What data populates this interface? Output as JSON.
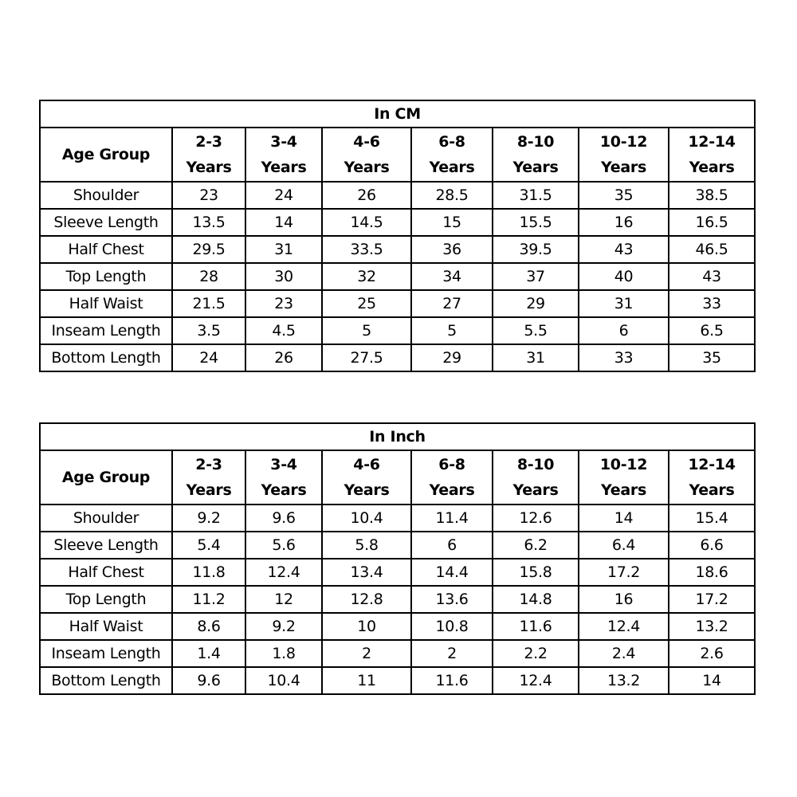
{
  "tables": [
    {
      "title": "In CM",
      "corner": "Age Group",
      "columns": [
        [
          "2-3",
          "Years"
        ],
        [
          "3-4",
          "Years"
        ],
        [
          "4-6",
          "Years"
        ],
        [
          "6-8",
          "Years"
        ],
        [
          "8-10",
          "Years"
        ],
        [
          "10-12",
          "Years"
        ],
        [
          "12-14",
          "Years"
        ]
      ],
      "rows": [
        {
          "label": "Shoulder",
          "values": [
            "23",
            "24",
            "26",
            "28.5",
            "31.5",
            "35",
            "38.5"
          ]
        },
        {
          "label": "Sleeve Length",
          "values": [
            "13.5",
            "14",
            "14.5",
            "15",
            "15.5",
            "16",
            "16.5"
          ]
        },
        {
          "label": "Half Chest",
          "values": [
            "29.5",
            "31",
            "33.5",
            "36",
            "39.5",
            "43",
            "46.5"
          ]
        },
        {
          "label": "Top Length",
          "values": [
            "28",
            "30",
            "32",
            "34",
            "37",
            "40",
            "43"
          ]
        },
        {
          "label": "Half Waist",
          "values": [
            "21.5",
            "23",
            "25",
            "27",
            "29",
            "31",
            "33"
          ]
        },
        {
          "label": "Inseam Length",
          "values": [
            "3.5",
            "4.5",
            "5",
            "5",
            "5.5",
            "6",
            "6.5"
          ]
        },
        {
          "label": "Bottom Length",
          "values": [
            "24",
            "26",
            "27.5",
            "29",
            "31",
            "33",
            "35"
          ]
        }
      ]
    },
    {
      "title": "In Inch",
      "corner": "Age Group",
      "columns": [
        [
          "2-3",
          "Years"
        ],
        [
          "3-4",
          "Years"
        ],
        [
          "4-6",
          "Years"
        ],
        [
          "6-8",
          "Years"
        ],
        [
          "8-10",
          "Years"
        ],
        [
          "10-12",
          "Years"
        ],
        [
          "12-14",
          "Years"
        ]
      ],
      "rows": [
        {
          "label": "Shoulder",
          "values": [
            "9.2",
            "9.6",
            "10.4",
            "11.4",
            "12.6",
            "14",
            "15.4"
          ]
        },
        {
          "label": "Sleeve Length",
          "values": [
            "5.4",
            "5.6",
            "5.8",
            "6",
            "6.2",
            "6.4",
            "6.6"
          ]
        },
        {
          "label": "Half Chest",
          "values": [
            "11.8",
            "12.4",
            "13.4",
            "14.4",
            "15.8",
            "17.2",
            "18.6"
          ]
        },
        {
          "label": "Top Length",
          "values": [
            "11.2",
            "12",
            "12.8",
            "13.6",
            "14.8",
            "16",
            "17.2"
          ]
        },
        {
          "label": "Half Waist",
          "values": [
            "8.6",
            "9.2",
            "10",
            "10.8",
            "11.6",
            "12.4",
            "13.2"
          ]
        },
        {
          "label": "Inseam Length",
          "values": [
            "1.4",
            "1.8",
            "2",
            "2",
            "2.2",
            "2.4",
            "2.6"
          ]
        },
        {
          "label": "Bottom Length",
          "values": [
            "9.6",
            "10.4",
            "11",
            "11.6",
            "12.4",
            "13.2",
            "14"
          ]
        }
      ]
    }
  ]
}
